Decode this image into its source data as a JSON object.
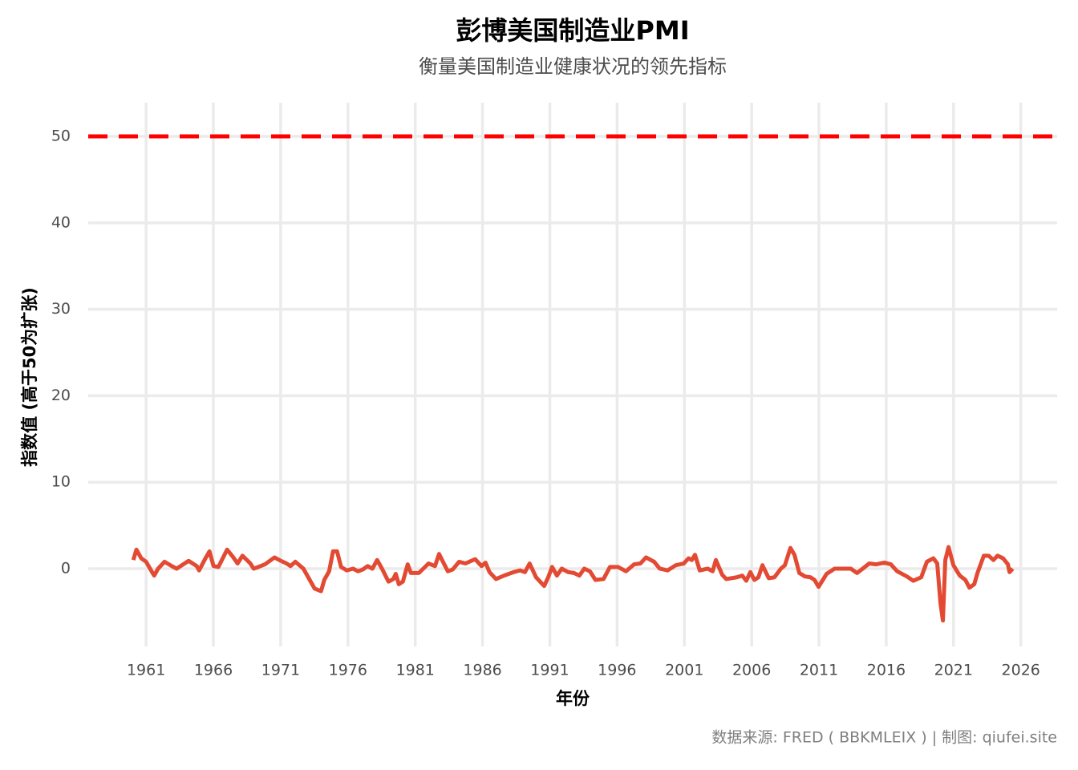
{
  "chart_data": {
    "type": "line",
    "title": "彭博美国制造业PMI",
    "subtitle": "衡量美国制造业健康状况的领先指标",
    "x_label": "年份",
    "y_label": "指数值 (高于50为扩张)",
    "caption": "数据来源: FRED ( BBKMLEIX ) | 制图: qiufei.site",
    "x": [
      1960.05,
      1960.28,
      1960.64,
      1961.0,
      1961.48,
      1961.6,
      1961.89,
      1962.37,
      1962.91,
      1963.27,
      1963.86,
      1964.16,
      1964.76,
      1964.94,
      1965.41,
      1965.71,
      1966.01,
      1966.37,
      1967.02,
      1967.44,
      1967.8,
      1968.16,
      1968.75,
      1968.99,
      1969.35,
      1969.83,
      1970.54,
      1971.02,
      1971.44,
      1971.73,
      1972.09,
      1972.69,
      1973.05,
      1973.52,
      1974.0,
      1974.24,
      1974.6,
      1974.89,
      1975.19,
      1975.49,
      1975.91,
      1976.38,
      1976.74,
      1977.1,
      1977.46,
      1977.82,
      1978.17,
      1978.53,
      1979.01,
      1979.37,
      1979.55,
      1979.78,
      1980.08,
      1980.44,
      1980.68,
      1981.27,
      1981.99,
      1982.47,
      1982.77,
      1983.06,
      1983.42,
      1983.78,
      1984.26,
      1984.73,
      1985.45,
      1985.93,
      1986.22,
      1986.52,
      1987.0,
      1987.6,
      1988.31,
      1988.79,
      1989.15,
      1989.5,
      1989.98,
      1990.58,
      1990.88,
      1991.17,
      1991.53,
      1991.89,
      1992.37,
      1992.79,
      1993.2,
      1993.56,
      1993.98,
      1994.39,
      1994.99,
      1995.47,
      1996.06,
      1996.66,
      1997.26,
      1997.73,
      1998.15,
      1998.75,
      1999.17,
      1999.76,
      2000.36,
      2000.95,
      2001.31,
      2001.55,
      2001.79,
      2002.14,
      2002.74,
      2003.1,
      2003.34,
      2003.81,
      2004.11,
      2004.89,
      2005.3,
      2005.6,
      2005.9,
      2006.2,
      2006.5,
      2006.8,
      2007.27,
      2007.69,
      2008.17,
      2008.47,
      2008.88,
      2009.18,
      2009.54,
      2009.96,
      2010.37,
      2010.67,
      2010.97,
      2011.57,
      2012.16,
      2012.76,
      2013.36,
      2013.83,
      2014.25,
      2014.73,
      2015.26,
      2015.86,
      2016.34,
      2016.81,
      2017.53,
      2018.01,
      2018.6,
      2019.02,
      2019.5,
      2019.79,
      2020.03,
      2020.21,
      2020.39,
      2020.63,
      2020.99,
      2021.46,
      2021.88,
      2022.18,
      2022.54,
      2022.78,
      2023.25,
      2023.61,
      2023.97,
      2024.27,
      2024.68,
      2025.04,
      2025.16,
      2025.4
    ],
    "series": [
      {
        "name": "PMI",
        "color": "#e34a33",
        "values": [
          1.0,
          2.2,
          1.2,
          0.8,
          -0.5,
          -0.8,
          0.0,
          0.8,
          0.3,
          0.0,
          0.6,
          0.9,
          0.3,
          -0.2,
          1.2,
          2.0,
          0.3,
          0.2,
          2.2,
          1.4,
          0.6,
          1.5,
          0.6,
          0.0,
          0.2,
          0.5,
          1.3,
          0.9,
          0.6,
          0.3,
          0.8,
          0.0,
          -1.0,
          -2.3,
          -2.6,
          -1.3,
          -0.3,
          2.0,
          2.0,
          0.2,
          -0.2,
          0.0,
          -0.3,
          -0.1,
          0.3,
          0.0,
          1.0,
          0.0,
          -1.5,
          -1.2,
          -0.6,
          -1.8,
          -1.5,
          0.5,
          -0.5,
          -0.5,
          0.6,
          0.3,
          1.7,
          0.8,
          -0.3,
          -0.1,
          0.8,
          0.6,
          1.1,
          0.3,
          0.7,
          -0.4,
          -1.2,
          -0.8,
          -0.4,
          -0.2,
          -0.4,
          0.6,
          -1.0,
          -2.0,
          -1.0,
          0.2,
          -0.8,
          0.0,
          -0.4,
          -0.5,
          -0.8,
          0.0,
          -0.3,
          -1.3,
          -1.2,
          0.2,
          0.2,
          -0.3,
          0.5,
          0.6,
          1.3,
          0.8,
          0.0,
          -0.2,
          0.4,
          0.6,
          1.2,
          1.0,
          1.6,
          -0.2,
          0.0,
          -0.3,
          1.0,
          -0.7,
          -1.2,
          -1.0,
          -0.8,
          -1.4,
          -0.4,
          -1.3,
          -1.0,
          0.4,
          -1.1,
          -1.0,
          0.0,
          0.4,
          2.4,
          1.6,
          -0.5,
          -0.9,
          -1.0,
          -1.3,
          -2.1,
          -0.6,
          0.0,
          0.0,
          0.0,
          -0.5,
          0.0,
          0.6,
          0.5,
          0.7,
          0.5,
          -0.3,
          -0.9,
          -1.4,
          -1.0,
          0.8,
          1.2,
          0.6,
          -4.0,
          -6.0,
          1.0,
          2.5,
          0.4,
          -0.8,
          -1.3,
          -2.2,
          -1.8,
          -0.5,
          1.5,
          1.5,
          1.0,
          1.5,
          1.2,
          0.5,
          -0.4,
          0.0
        ]
      }
    ],
    "hline": 50,
    "hline_color": "#ff0000",
    "xlim": [
      1956.7,
      2028.7
    ],
    "xticks": [
      1961,
      1966,
      1971,
      1976,
      1981,
      1986,
      1991,
      1996,
      2001,
      2006,
      2011,
      2016,
      2021,
      2026
    ],
    "ylim": [
      -9,
      53.9
    ],
    "yticks": [
      0,
      10,
      20,
      30,
      40,
      50
    ],
    "grid": true
  }
}
